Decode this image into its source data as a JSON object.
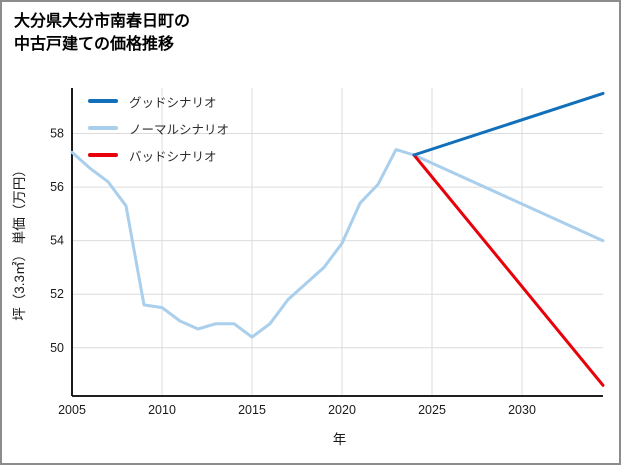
{
  "title": {
    "line1": "大分県大分市南春日町の",
    "line2": "中古戸建ての価格推移"
  },
  "chart_data": {
    "type": "line",
    "title": "大分県大分市南春日町の中古戸建ての価格推移",
    "xlabel": "年",
    "ylabel": "坪（3.3㎡） 単価（万円）",
    "xlim": [
      2005,
      2034.5
    ],
    "ylim": [
      48.2,
      59.7
    ],
    "xticks": [
      2005,
      2010,
      2015,
      2020,
      2025,
      2030
    ],
    "yticks": [
      50,
      52,
      54,
      56,
      58
    ],
    "grid": true,
    "legend_position": "upper-left",
    "axis_color": "#000000",
    "grid_color": "#dcdcdc",
    "tick_label_color": "#1a1a1a",
    "series": [
      {
        "name": "グッドシナリオ",
        "color": "#1170b9",
        "x": [
          2024,
          2034.5
        ],
        "values": [
          57.2,
          59.5
        ]
      },
      {
        "name": "ノーマルシナリオ",
        "color": "#a9cfec",
        "x": [
          2005,
          2006,
          2007,
          2008,
          2009,
          2010,
          2011,
          2012,
          2013,
          2014,
          2015,
          2016,
          2017,
          2018,
          2019,
          2020,
          2021,
          2022,
          2023,
          2024,
          2034.5
        ],
        "values": [
          57.3,
          56.7,
          56.2,
          55.3,
          51.6,
          51.5,
          51.0,
          50.7,
          50.9,
          50.9,
          50.4,
          50.9,
          51.8,
          52.4,
          53.0,
          53.9,
          55.4,
          56.1,
          57.4,
          57.2,
          54.0
        ]
      },
      {
        "name": "バッドシナリオ",
        "color": "#e8000b",
        "x": [
          2024,
          2034.5
        ],
        "values": [
          57.2,
          48.6
        ]
      }
    ]
  }
}
